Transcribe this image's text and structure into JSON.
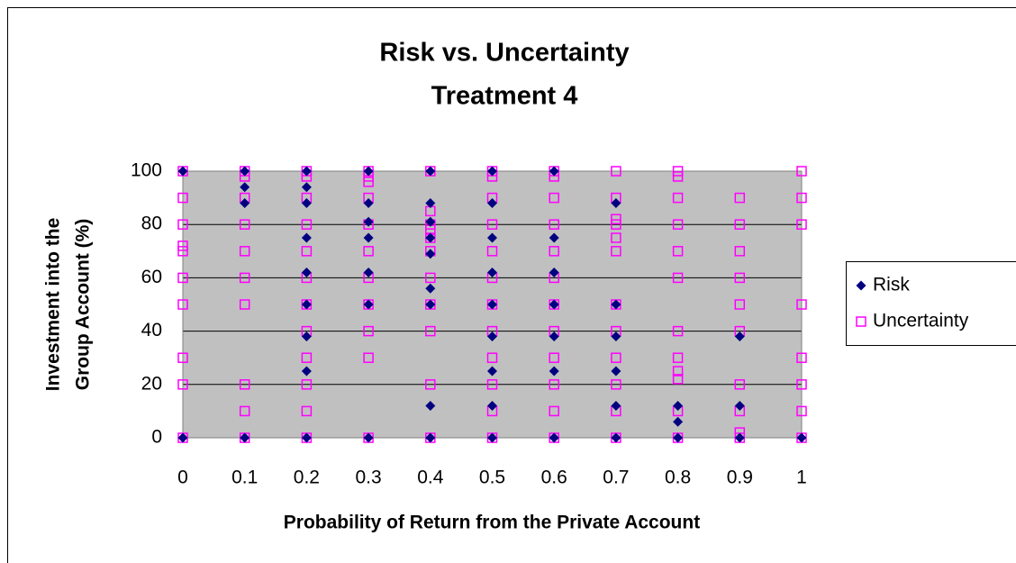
{
  "chart_data": {
    "type": "scatter",
    "title": "Risk vs. Uncertainty",
    "subtitle": "Treatment 4",
    "xlabel": "Probability of Return from the Private Account",
    "ylabel": [
      "Investment into the",
      "Group Account (%)"
    ],
    "xlim": [
      0,
      1
    ],
    "ylim": [
      0,
      100
    ],
    "xticks": [
      0,
      0.1,
      0.2,
      0.3,
      0.4,
      0.5,
      0.6,
      0.7,
      0.8,
      0.9,
      1
    ],
    "yticks": [
      0,
      20,
      40,
      60,
      80,
      100
    ],
    "grid": true,
    "legend": "right",
    "series": [
      {
        "name": "Risk",
        "color": "#000080",
        "marker": "diamond",
        "x": [
          0,
          0,
          0.1,
          0.1,
          0.1,
          0.1,
          0.2,
          0.2,
          0.2,
          0.2,
          0.2,
          0.2,
          0.2,
          0.2,
          0.2,
          0.3,
          0.3,
          0.3,
          0.3,
          0.3,
          0.3,
          0.3,
          0.4,
          0.4,
          0.4,
          0.4,
          0.4,
          0.4,
          0.4,
          0.4,
          0.4,
          0.5,
          0.5,
          0.5,
          0.5,
          0.5,
          0.5,
          0.5,
          0.5,
          0.5,
          0.6,
          0.6,
          0.6,
          0.6,
          0.6,
          0.6,
          0.6,
          0.7,
          0.7,
          0.7,
          0.7,
          0.7,
          0.7,
          0.8,
          0.8,
          0.8,
          0.9,
          0.9,
          0.9,
          1
        ],
        "y": [
          100,
          0,
          100,
          94,
          88,
          0,
          100,
          94,
          88,
          75,
          62,
          50,
          38,
          25,
          0,
          100,
          88,
          81,
          75,
          62,
          50,
          0,
          100,
          88,
          81,
          75,
          69,
          56,
          50,
          12,
          0,
          100,
          88,
          75,
          62,
          50,
          38,
          25,
          12,
          0,
          100,
          75,
          62,
          50,
          38,
          25,
          0,
          88,
          50,
          38,
          25,
          12,
          0,
          12,
          6,
          0,
          38,
          12,
          0,
          0
        ]
      },
      {
        "name": "Uncertainty",
        "color": "#ff00ff",
        "marker": "square",
        "x": [
          0,
          0,
          0,
          0,
          0,
          0,
          0,
          0,
          0,
          0,
          0.1,
          0.1,
          0.1,
          0.1,
          0.1,
          0.1,
          0.1,
          0.1,
          0.1,
          0.1,
          0.2,
          0.2,
          0.2,
          0.2,
          0.2,
          0.2,
          0.2,
          0.2,
          0.2,
          0.2,
          0.2,
          0.2,
          0.3,
          0.3,
          0.3,
          0.3,
          0.3,
          0.3,
          0.3,
          0.3,
          0.3,
          0.3,
          0.3,
          0.4,
          0.4,
          0.4,
          0.4,
          0.4,
          0.4,
          0.4,
          0.4,
          0.4,
          0.4,
          0.4,
          0.5,
          0.5,
          0.5,
          0.5,
          0.5,
          0.5,
          0.5,
          0.5,
          0.5,
          0.5,
          0.5,
          0.5,
          0.6,
          0.6,
          0.6,
          0.6,
          0.6,
          0.6,
          0.6,
          0.6,
          0.6,
          0.6,
          0.6,
          0.6,
          0.7,
          0.7,
          0.7,
          0.7,
          0.7,
          0.7,
          0.7,
          0.7,
          0.7,
          0.7,
          0.7,
          0.7,
          0.8,
          0.8,
          0.8,
          0.8,
          0.8,
          0.8,
          0.8,
          0.8,
          0.8,
          0.8,
          0.8,
          0.8,
          0.9,
          0.9,
          0.9,
          0.9,
          0.9,
          0.9,
          0.9,
          0.9,
          0.9,
          0.9,
          1,
          1,
          1,
          1,
          1,
          1,
          1,
          1
        ],
        "y": [
          100,
          90,
          80,
          72,
          70,
          60,
          50,
          30,
          20,
          0,
          100,
          98,
          90,
          80,
          70,
          60,
          50,
          20,
          10,
          0,
          100,
          98,
          90,
          80,
          70,
          60,
          50,
          40,
          30,
          20,
          10,
          0,
          100,
          98,
          96,
          90,
          80,
          70,
          60,
          50,
          40,
          30,
          0,
          100,
          85,
          80,
          78,
          75,
          70,
          60,
          50,
          40,
          20,
          0,
          100,
          98,
          90,
          80,
          70,
          60,
          50,
          40,
          30,
          20,
          10,
          0,
          100,
          98,
          90,
          80,
          70,
          60,
          50,
          40,
          30,
          20,
          10,
          0,
          100,
          90,
          82,
          80,
          75,
          70,
          50,
          40,
          30,
          20,
          10,
          0,
          100,
          98,
          90,
          80,
          70,
          60,
          40,
          30,
          25,
          22,
          10,
          0,
          90,
          80,
          70,
          60,
          50,
          40,
          20,
          10,
          2,
          0,
          100,
          90,
          80,
          50,
          30,
          20,
          10,
          0
        ]
      }
    ]
  }
}
